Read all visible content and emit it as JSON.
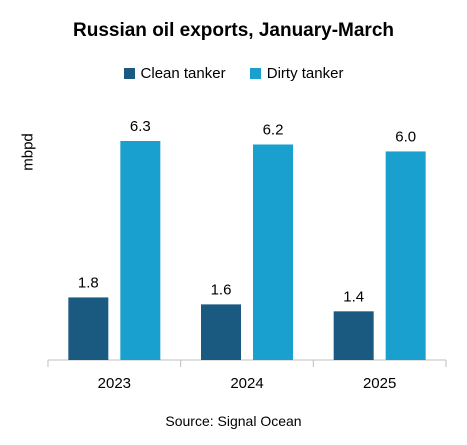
{
  "chart_data": {
    "type": "bar",
    "title": "Russian oil exports, January-March",
    "ylabel": "mbpd",
    "xlabel": "",
    "categories": [
      "2023",
      "2024",
      "2025"
    ],
    "series": [
      {
        "name": "Clean tanker",
        "values": [
          1.8,
          1.6,
          1.4
        ],
        "color": "#1a5a80"
      },
      {
        "name": "Dirty tanker",
        "values": [
          6.3,
          6.2,
          6.0
        ],
        "color": "#1aa0cf"
      }
    ],
    "data_labels": [
      [
        "1.8",
        "1.6",
        "1.4"
      ],
      [
        "6.3",
        "6.2",
        "6.0"
      ]
    ],
    "ylim": [
      0,
      6.3
    ],
    "grid": false,
    "legend_position": "top",
    "source": "Source: Signal Ocean"
  }
}
